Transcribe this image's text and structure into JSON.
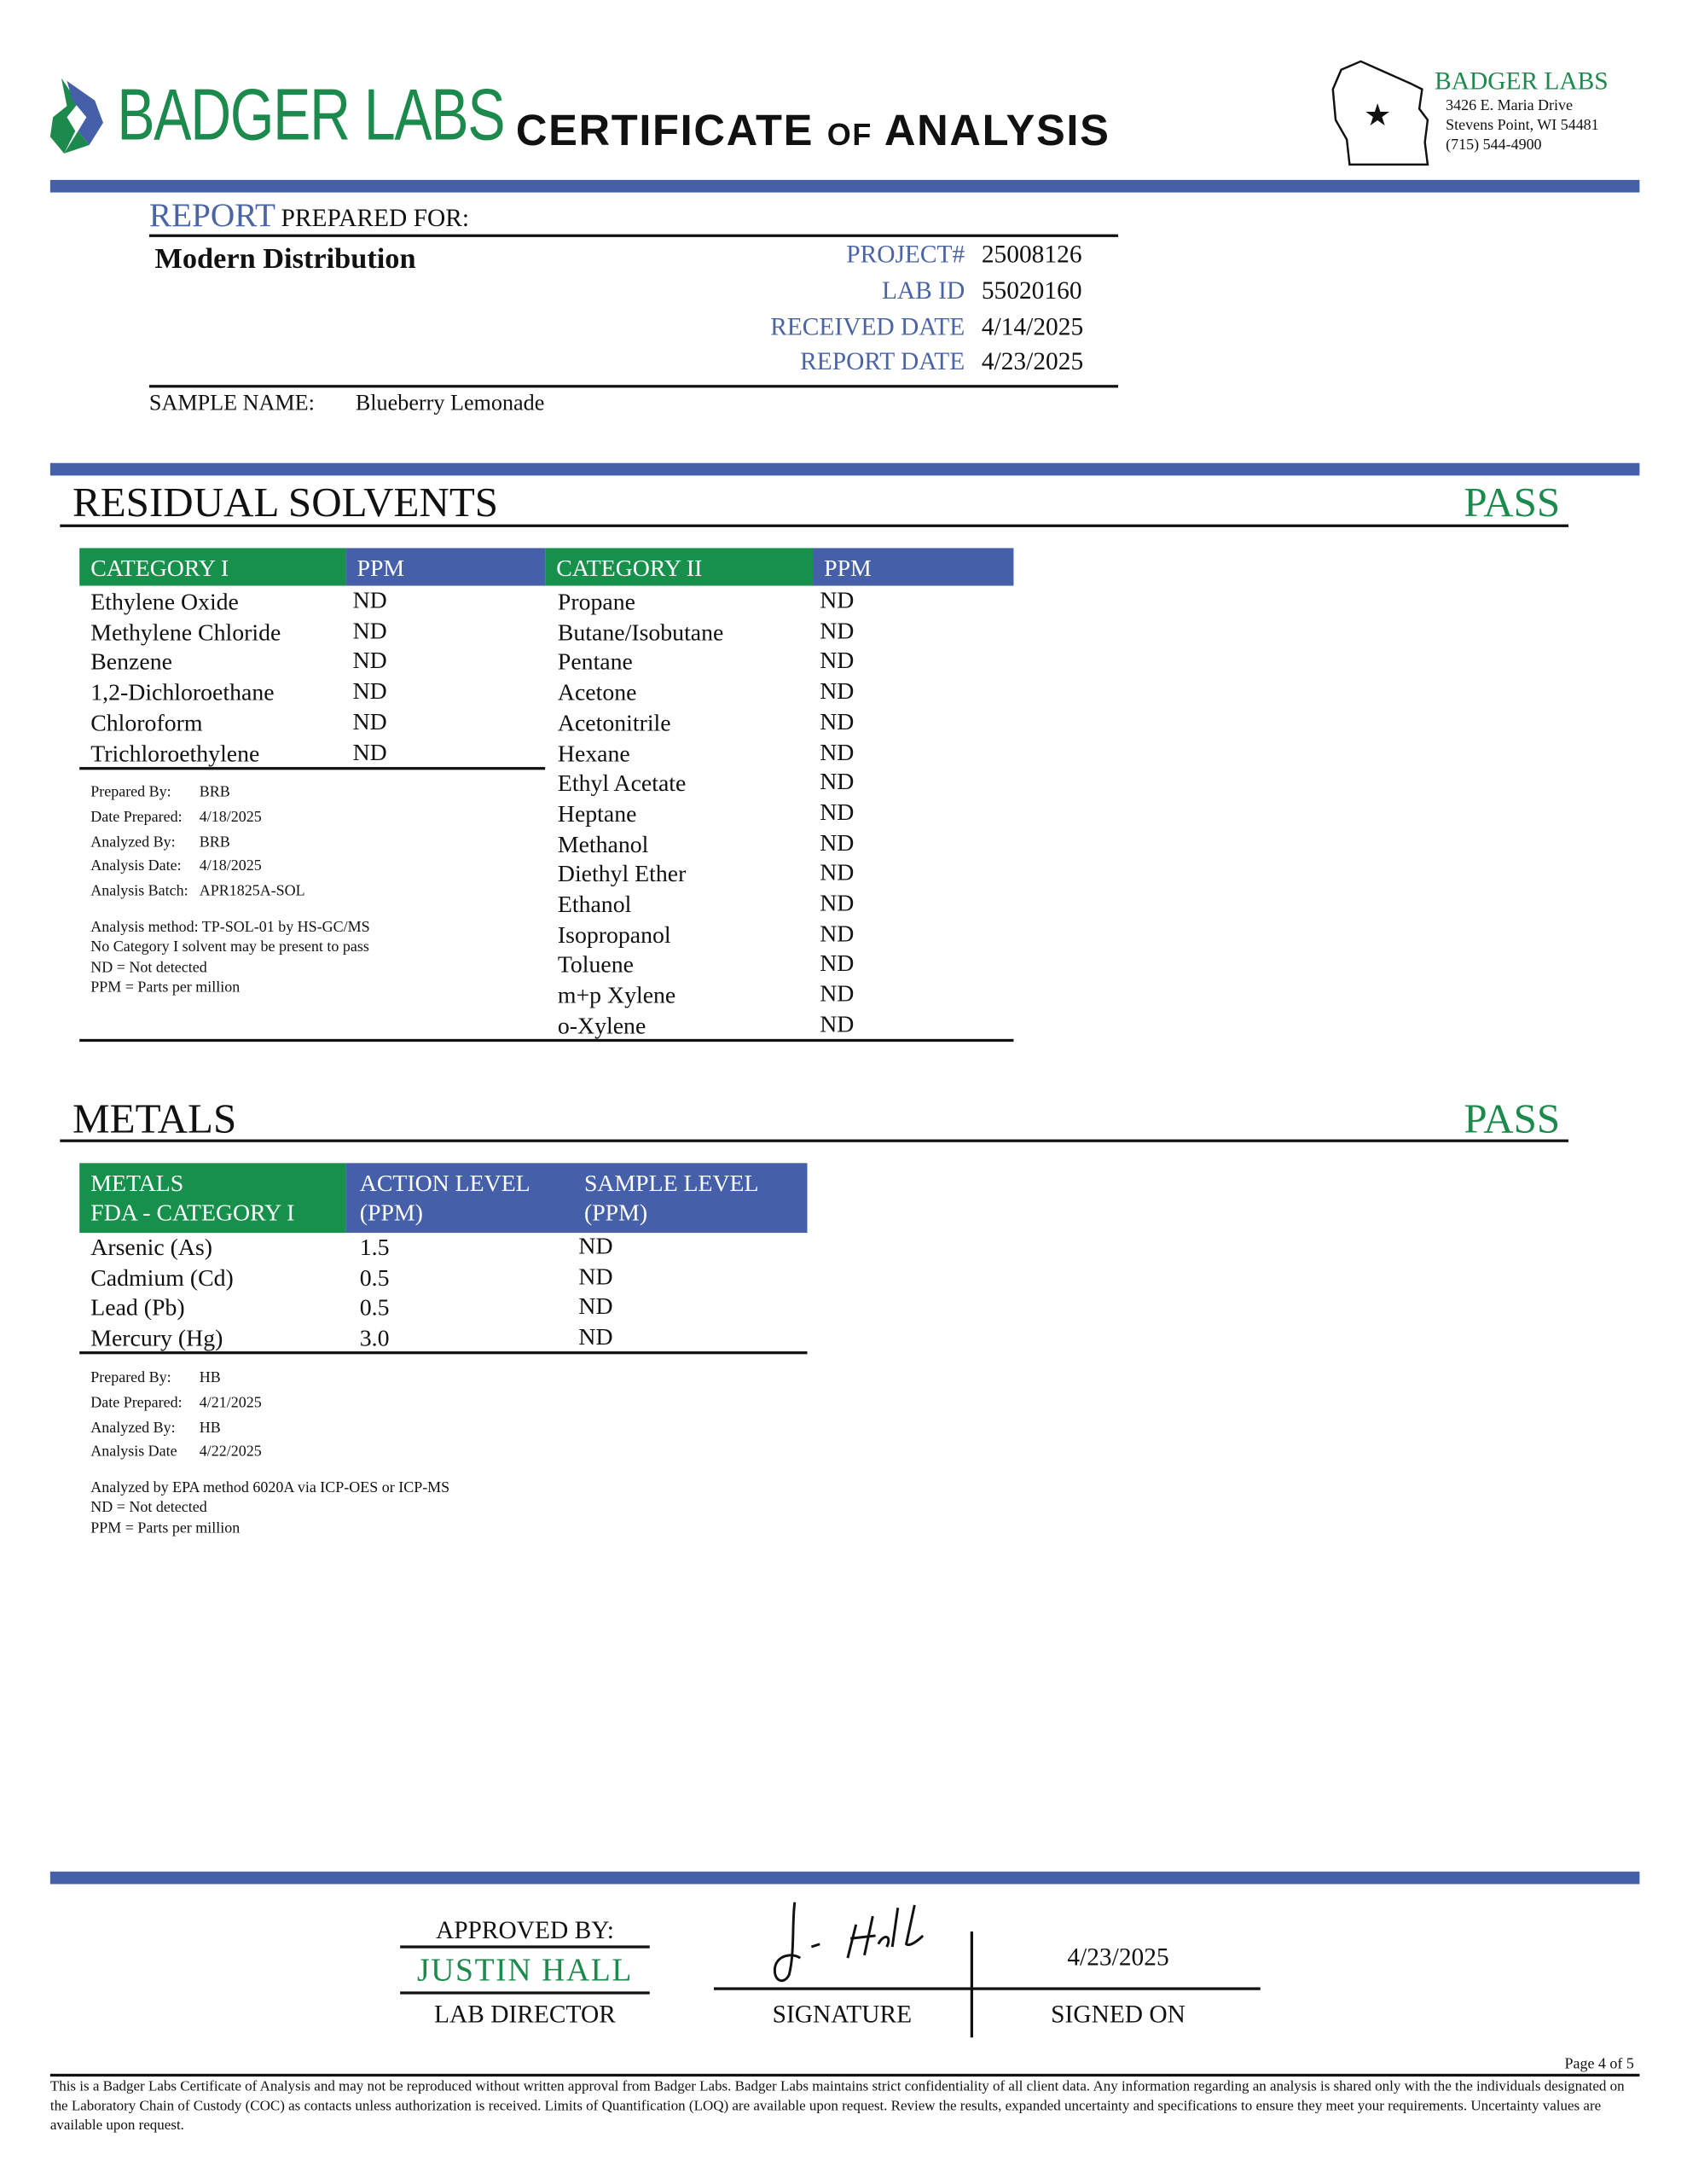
{
  "header": {
    "logo_text": "BADGER LABS",
    "title_main1": "CERTIFICATE",
    "title_of": "OF",
    "title_main2": "ANALYSIS",
    "lab_name": "BADGER LABS",
    "address": [
      "3426 E. Maria Drive",
      "Stevens Point, WI 54481",
      "(715) 544-4900"
    ],
    "colors": {
      "brand_green": "#1c8a4c",
      "brand_blue": "#4560a8"
    }
  },
  "report": {
    "label_report": "REPORT",
    "label_prepared": "PREPARED FOR:",
    "client": "Modern Distribution",
    "fields": [
      {
        "label": "PROJECT#",
        "value": "25008126"
      },
      {
        "label": "LAB ID",
        "value": "55020160"
      },
      {
        "label": "RECEIVED DATE",
        "value": "4/14/2025"
      },
      {
        "label": "REPORT DATE",
        "value": "4/23/2025"
      }
    ],
    "sample_label": "SAMPLE NAME:",
    "sample_value": "Blueberry Lemonade"
  },
  "solvents": {
    "title": "RESIDUAL SOLVENTS",
    "result": "PASS",
    "headers": [
      "CATEGORY I",
      "PPM",
      "CATEGORY II",
      "PPM"
    ],
    "cat1": [
      [
        "Ethylene Oxide",
        "ND"
      ],
      [
        "Methylene Chloride",
        "ND"
      ],
      [
        "Benzene",
        "ND"
      ],
      [
        "1,2-Dichloroethane",
        "ND"
      ],
      [
        "Chloroform",
        "ND"
      ],
      [
        "Trichloroethylene",
        "ND"
      ]
    ],
    "cat2": [
      [
        "Propane",
        "ND"
      ],
      [
        "Butane/Isobutane",
        "ND"
      ],
      [
        "Pentane",
        "ND"
      ],
      [
        "Acetone",
        "ND"
      ],
      [
        "Acetonitrile",
        "ND"
      ],
      [
        "Hexane",
        "ND"
      ],
      [
        "Ethyl Acetate",
        "ND"
      ],
      [
        "Heptane",
        "ND"
      ],
      [
        "Methanol",
        "ND"
      ],
      [
        "Diethyl Ether",
        "ND"
      ],
      [
        "Ethanol",
        "ND"
      ],
      [
        "Isopropanol",
        "ND"
      ],
      [
        "Toluene",
        "ND"
      ],
      [
        "m+p Xylene",
        "ND"
      ],
      [
        "o-Xylene",
        "ND"
      ]
    ],
    "info": [
      [
        "Prepared By:",
        "BRB"
      ],
      [
        "Date Prepared:",
        "4/18/2025"
      ],
      [
        "Analyzed By:",
        "BRB"
      ],
      [
        "Analysis Date:",
        "4/18/2025"
      ],
      [
        "Analysis Batch:",
        "APR1825A-SOL"
      ]
    ],
    "notes": [
      "Analysis method: TP-SOL-01 by HS-GC/MS",
      "No Category I solvent may be present to pass",
      "ND = Not detected",
      "PPM = Parts per million"
    ]
  },
  "metals": {
    "title": "METALS",
    "result": "PASS",
    "headers": [
      [
        "METALS",
        "FDA - CATEGORY I"
      ],
      [
        "ACTION LEVEL",
        "(PPM)"
      ],
      [
        "SAMPLE LEVEL",
        "(PPM)"
      ]
    ],
    "rows": [
      [
        "Arsenic (As)",
        "1.5",
        "ND"
      ],
      [
        "Cadmium (Cd)",
        "0.5",
        "ND"
      ],
      [
        "Lead (Pb)",
        "0.5",
        "ND"
      ],
      [
        "Mercury (Hg)",
        "3.0",
        "ND"
      ]
    ],
    "info": [
      [
        "Prepared By:",
        "HB"
      ],
      [
        "Date Prepared:",
        "4/21/2025"
      ],
      [
        "Analyzed By:",
        "HB"
      ],
      [
        "Analysis Date",
        "4/22/2025"
      ]
    ],
    "notes": [
      "Analyzed by EPA method 6020A via ICP-OES or ICP-MS",
      "ND = Not detected",
      "PPM = Parts per million"
    ]
  },
  "approval": {
    "approved_by": "APPROVED BY:",
    "name": "JUSTIN HALL",
    "role": "LAB DIRECTOR",
    "signature_label": "SIGNATURE",
    "signed_on_label": "SIGNED ON",
    "signed_date": "4/23/2025"
  },
  "footer": {
    "page": "Page 4 of 5",
    "disclaimer": "This is a Badger Labs Certificate of Analysis and may not be reproduced without written approval from Badger Labs. Badger Labs maintains strict confidentiality of all client data. Any information regarding an analysis is shared only with the the individuals designated on the Laboratory Chain of Custody (COC) as contacts unless authorization is received. Limits of Quantification (LOQ) are available upon request. Review the results, expanded uncertainty and specifications to ensure they meet your requirements. Uncertainty values are available upon request."
  }
}
